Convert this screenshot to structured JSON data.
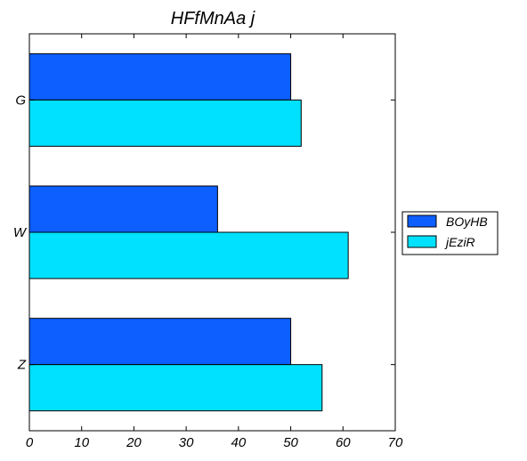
{
  "chart_data": {
    "type": "bar",
    "orientation": "horizontal",
    "title": "HFfMnAa j",
    "xlabel": "",
    "ylabel": "",
    "categories": [
      "G",
      "W",
      "Z"
    ],
    "series": [
      {
        "name": "BOyHB",
        "values": [
          50,
          36,
          50
        ],
        "color": "#0d5fff"
      },
      {
        "name": "jEziR",
        "values": [
          52,
          61,
          56
        ],
        "color": "#00e1ff"
      }
    ],
    "xlim": [
      0,
      70
    ],
    "xticks": [
      0,
      10,
      20,
      30,
      40,
      50,
      60,
      70
    ],
    "grid": false,
    "legend_position": "right"
  }
}
